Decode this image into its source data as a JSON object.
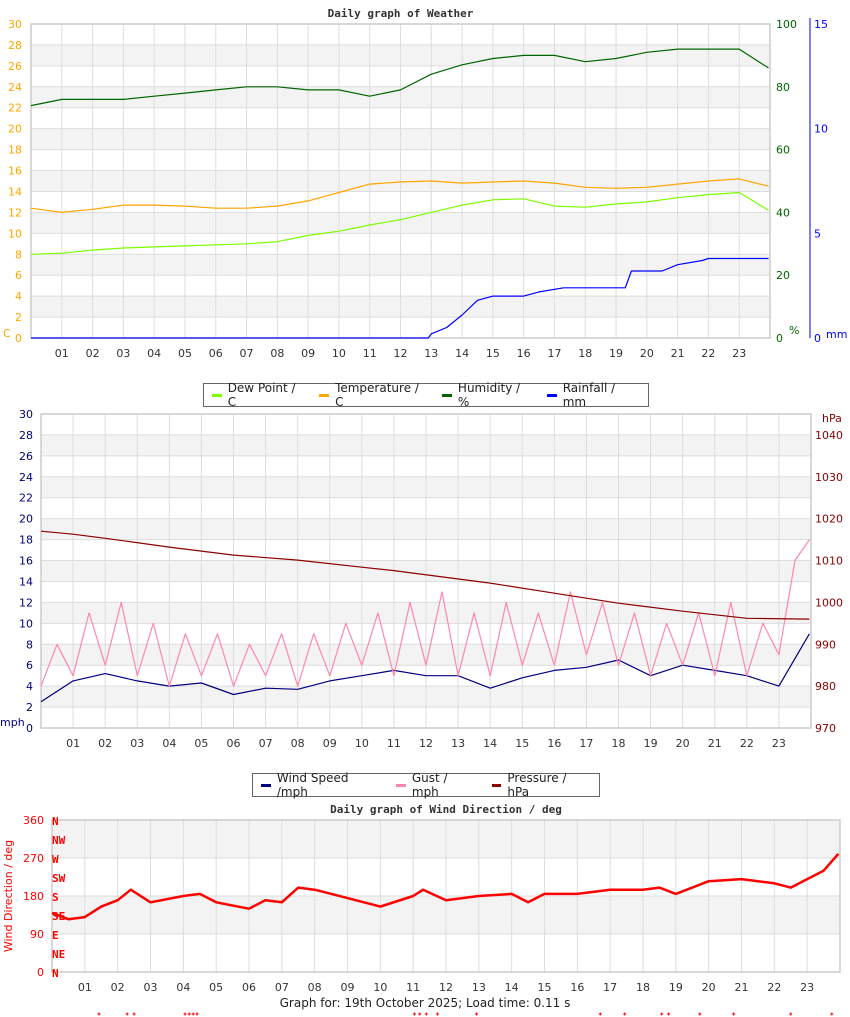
{
  "footer": "Graph for: 19th October 2025; Load time: 0.11 s",
  "chart_data": [
    {
      "type": "line",
      "title": "Daily graph of Weather",
      "x_range": [
        0,
        24
      ],
      "x_ticks": [
        "01",
        "02",
        "03",
        "04",
        "05",
        "06",
        "07",
        "08",
        "09",
        "10",
        "11",
        "12",
        "13",
        "14",
        "15",
        "16",
        "17",
        "18",
        "19",
        "20",
        "21",
        "22",
        "23"
      ],
      "grid": true,
      "legend_position": "bottom",
      "axes": {
        "left": {
          "label": "C",
          "min": 0,
          "max": 30,
          "ticks": [
            0,
            2,
            4,
            6,
            8,
            10,
            12,
            14,
            16,
            18,
            20,
            22,
            24,
            26,
            28,
            30
          ],
          "color": "#ffa500"
        },
        "humidity": {
          "label": "%",
          "min": 0,
          "max": 100,
          "ticks": [
            0,
            20,
            40,
            60,
            80,
            100
          ],
          "color": "#006400"
        },
        "rain": {
          "label": "mm",
          "min": 0,
          "max": 15,
          "ticks": [
            0,
            5,
            10,
            15
          ],
          "color": "#0000ff"
        }
      },
      "series": [
        {
          "name": "Dew Point / C",
          "axis": "left",
          "color": "#7cfc00",
          "x_step": 1,
          "y": [
            8.0,
            8.1,
            8.4,
            8.6,
            8.7,
            8.8,
            8.9,
            9.0,
            9.2,
            9.8,
            10.2,
            10.8,
            11.3,
            12.0,
            12.7,
            13.2,
            13.3,
            12.6,
            12.5,
            12.8,
            13.0,
            13.4,
            13.7,
            13.9,
            12.2
          ]
        },
        {
          "name": "Temperature / C",
          "axis": "left",
          "color": "#ffa500",
          "x_step": 1,
          "y": [
            12.4,
            12.0,
            12.3,
            12.7,
            12.7,
            12.6,
            12.4,
            12.4,
            12.6,
            13.1,
            13.9,
            14.7,
            14.9,
            15.0,
            14.8,
            14.9,
            15.0,
            14.8,
            14.4,
            14.3,
            14.4,
            14.7,
            15.0,
            15.2,
            14.5
          ]
        },
        {
          "name": "Humidity / %",
          "axis": "humidity",
          "color": "#006400",
          "x_step": 1,
          "y": [
            74,
            76,
            76,
            76,
            77,
            78,
            79,
            80,
            80,
            79,
            79,
            77,
            79,
            84,
            87,
            89,
            90,
            90,
            88,
            89,
            91,
            92,
            92,
            92,
            86
          ]
        },
        {
          "name": "Rainfall / mm",
          "axis": "rain",
          "color": "#0000ff",
          "x": [
            0,
            12.9,
            13.0,
            13.5,
            14.0,
            14.5,
            15.0,
            16.0,
            16.5,
            17.3,
            19.3,
            19.5,
            20.5,
            21.0,
            21.8,
            22.0,
            24.0
          ],
          "y": [
            0,
            0,
            0.2,
            0.5,
            1.1,
            1.8,
            2.0,
            2.0,
            2.2,
            2.4,
            2.4,
            3.2,
            3.2,
            3.5,
            3.7,
            3.8,
            3.8
          ]
        }
      ]
    },
    {
      "type": "line",
      "title": "",
      "x_range": [
        0,
        24
      ],
      "x_ticks": [
        "01",
        "02",
        "03",
        "04",
        "05",
        "06",
        "07",
        "08",
        "09",
        "10",
        "11",
        "12",
        "13",
        "14",
        "15",
        "16",
        "17",
        "18",
        "19",
        "20",
        "21",
        "22",
        "23"
      ],
      "grid": true,
      "legend_position": "bottom",
      "axes": {
        "left": {
          "label": "mph",
          "min": 0,
          "max": 30,
          "ticks": [
            0,
            2,
            4,
            6,
            8,
            10,
            12,
            14,
            16,
            18,
            20,
            22,
            24,
            26,
            28,
            30
          ],
          "color": "#000080"
        },
        "pressure": {
          "label": "hPa",
          "min": 970,
          "max": 1045,
          "ticks": [
            970,
            980,
            990,
            1000,
            1010,
            1020,
            1030,
            1040
          ],
          "color": "#8b0000"
        }
      },
      "series": [
        {
          "name": "Wind Speed /mph",
          "axis": "left",
          "color": "#000080",
          "x_step": 1,
          "y": [
            2.5,
            4.5,
            5.2,
            4.5,
            4.0,
            4.3,
            3.2,
            3.8,
            3.7,
            4.5,
            5.0,
            5.5,
            5.0,
            5.0,
            3.8,
            4.8,
            5.5,
            5.8,
            6.5,
            5.0,
            6.0,
            5.5,
            5.0,
            4.0,
            9.0
          ]
        },
        {
          "name": "Gust / mph",
          "axis": "left",
          "color": "#ff88aa",
          "x_step": 0.5,
          "y": [
            4,
            8,
            5,
            11,
            6,
            12,
            5,
            10,
            4,
            9,
            5,
            9,
            4,
            8,
            5,
            9,
            4,
            9,
            5,
            10,
            6,
            11,
            5,
            12,
            6,
            13,
            5,
            11,
            5,
            12,
            6,
            11,
            6,
            13,
            7,
            12,
            6,
            11,
            5,
            10,
            6,
            11,
            5,
            12,
            5,
            10,
            7,
            16,
            18
          ]
        },
        {
          "name": "Pressure / hPa",
          "axis": "pressure",
          "color": "#8b0000",
          "x": [
            0,
            1,
            2,
            4,
            6,
            8,
            10,
            11,
            14,
            16,
            18,
            20,
            22,
            24
          ],
          "y": [
            1017.0,
            1016.3,
            1015.3,
            1013.2,
            1011.3,
            1010.1,
            1008.4,
            1007.6,
            1004.6,
            1002.2,
            999.8,
            997.9,
            996.2,
            996.0
          ]
        }
      ]
    },
    {
      "type": "line",
      "title": "Daily graph of Wind Direction / deg",
      "x_range": [
        0,
        24
      ],
      "x_ticks": [
        "01",
        "02",
        "03",
        "04",
        "05",
        "06",
        "07",
        "08",
        "09",
        "10",
        "11",
        "12",
        "13",
        "14",
        "15",
        "16",
        "17",
        "18",
        "19",
        "20",
        "21",
        "22",
        "23"
      ],
      "grid": true,
      "ylabel": "Wind Direction / deg",
      "axes": {
        "left": {
          "label": "Wind Direction / deg",
          "min": 0,
          "max": 360,
          "ticks": [
            0,
            90,
            180,
            270,
            360
          ],
          "color": "#ff0000"
        }
      },
      "compass": [
        "N",
        "NE",
        "E",
        "SE",
        "S",
        "SW",
        "W",
        "NW",
        "N"
      ],
      "series": [
        {
          "name": "Wind Direction / deg",
          "axis": "left",
          "color": "#ff0000",
          "x": [
            0,
            0.5,
            1,
            1.5,
            2,
            2.4,
            3,
            4,
            4.5,
            5,
            6,
            6.5,
            7,
            7.5,
            8,
            9,
            10,
            11,
            11.3,
            12,
            13,
            14,
            14.5,
            15,
            16,
            17,
            18,
            18.5,
            19,
            19.5,
            20,
            21,
            22,
            22.5,
            23,
            23.5,
            24
          ],
          "y": [
            140,
            125,
            130,
            155,
            170,
            195,
            165,
            180,
            185,
            165,
            150,
            170,
            165,
            200,
            195,
            175,
            155,
            180,
            195,
            170,
            180,
            185,
            165,
            185,
            185,
            195,
            195,
            200,
            185,
            200,
            215,
            220,
            210,
            200,
            220,
            240,
            280
          ]
        }
      ],
      "markers_hours": [
        1.43,
        2.29,
        2.5,
        4.05,
        4.18,
        4.3,
        4.42,
        11.04,
        11.2,
        11.4,
        11.74,
        12.93,
        16.7,
        17.44,
        18.57,
        18.78,
        19.73,
        20.76,
        22.5,
        23.75
      ]
    }
  ]
}
